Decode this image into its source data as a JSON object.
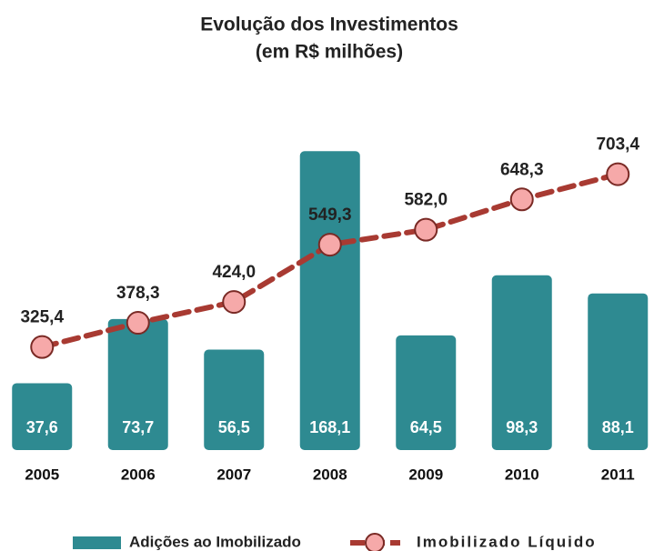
{
  "chart_data": {
    "type": "bar+line",
    "title": "Evolução dos Investimentos",
    "subtitle": "(em R$ milhões)",
    "categories": [
      "2005",
      "2006",
      "2007",
      "2008",
      "2009",
      "2010",
      "2011"
    ],
    "series": [
      {
        "name": "Adições ao Imobilizado",
        "type": "bar",
        "color": "#2e8a91",
        "values": [
          37.6,
          73.7,
          56.5,
          168.1,
          64.5,
          98.3,
          88.1
        ],
        "value_labels": [
          "37,6",
          "73,7",
          "56,5",
          "168,1",
          "64,5",
          "98,3",
          "88,1"
        ]
      },
      {
        "name": "Imobilizado Líquido",
        "type": "line",
        "axis": "y2",
        "color": "#a83a32",
        "marker_color": "#f6a9a9",
        "values": [
          325.4,
          378.3,
          424.0,
          549.3,
          582.0,
          648.3,
          703.4
        ],
        "value_labels": [
          "325,4",
          "378,3",
          "424,0",
          "549,3",
          "582,0",
          "648,3",
          "703,4"
        ]
      }
    ],
    "ylim": [
      0,
      180
    ],
    "y2lim": [
      100,
      800
    ],
    "legend": "bottom"
  }
}
